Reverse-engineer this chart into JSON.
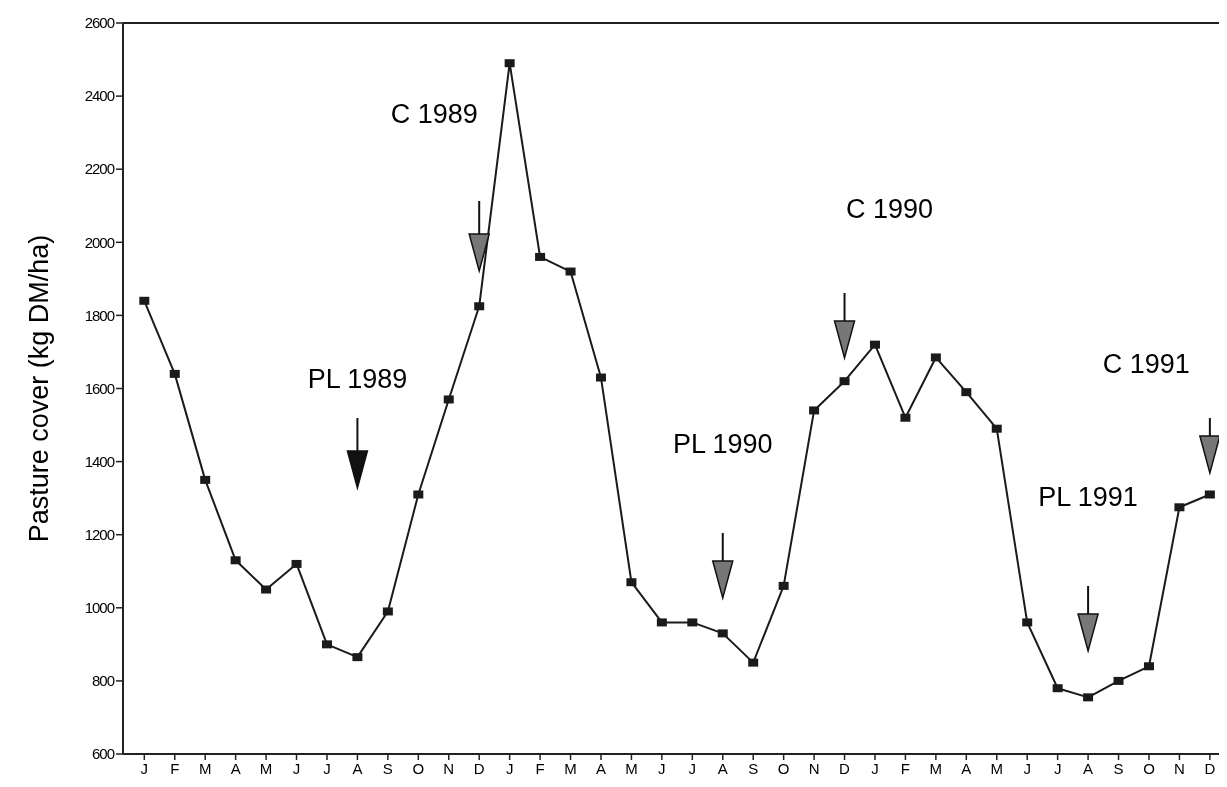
{
  "chart_data": {
    "type": "line",
    "ylabel": "Pasture cover (kg DM/ha)",
    "categories": [
      "J",
      "F",
      "M",
      "A",
      "M",
      "J",
      "J",
      "A",
      "S",
      "O",
      "N",
      "D",
      "J",
      "F",
      "M",
      "A",
      "M",
      "J",
      "J",
      "A",
      "S",
      "O",
      "N",
      "D",
      "J",
      "F",
      "M",
      "A",
      "M",
      "J",
      "J",
      "A",
      "S",
      "O",
      "N",
      "D"
    ],
    "values": [
      1840,
      1640,
      1350,
      1130,
      1050,
      1120,
      900,
      865,
      990,
      1310,
      1570,
      1825,
      2490,
      1960,
      1920,
      1630,
      1070,
      960,
      960,
      930,
      850,
      1060,
      1540,
      1620,
      1720,
      1520,
      1685,
      1590,
      1490,
      960,
      780,
      755,
      800,
      840,
      1275,
      1310
    ],
    "color": "#1a1a1a",
    "marker": "square",
    "line_style": "solid",
    "ylim": [
      600,
      2600
    ],
    "yticks": [
      600,
      800,
      1000,
      1200,
      1400,
      1600,
      1800,
      2000,
      2200,
      2400,
      2600
    ],
    "annotations": [
      "PL 1989",
      "C 1989",
      "PL 1990",
      "C 1990",
      "PL 1991",
      "C 1991"
    ]
  }
}
